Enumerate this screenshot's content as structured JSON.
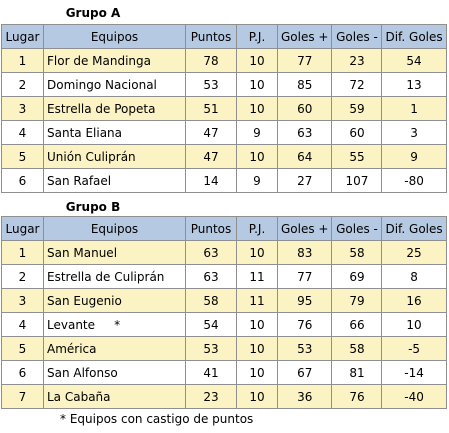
{
  "columns": [
    "Lugar",
    "Equipos",
    "Puntos",
    "P.J.",
    "Goles +",
    "Goles -",
    "Dif. Goles"
  ],
  "groups": [
    {
      "title": "Grupo A",
      "rows": [
        {
          "lugar": "1",
          "equipo": "Flor de Mandinga",
          "puntos": "78",
          "pj": "10",
          "gf": "77",
          "gc": "23",
          "dif": "54"
        },
        {
          "lugar": "2",
          "equipo": "Domingo Nacional",
          "puntos": "53",
          "pj": "10",
          "gf": "85",
          "gc": "72",
          "dif": "13"
        },
        {
          "lugar": "3",
          "equipo": "Estrella de Popeta",
          "puntos": "51",
          "pj": "10",
          "gf": "60",
          "gc": "59",
          "dif": "1"
        },
        {
          "lugar": "4",
          "equipo": "Santa Eliana",
          "puntos": "47",
          "pj": "9",
          "gf": "63",
          "gc": "60",
          "dif": "3"
        },
        {
          "lugar": "5",
          "equipo": "Unión Culiprán",
          "puntos": "47",
          "pj": "10",
          "gf": "64",
          "gc": "55",
          "dif": "9"
        },
        {
          "lugar": "6",
          "equipo": "San Rafael",
          "puntos": "14",
          "pj": "9",
          "gf": "27",
          "gc": "107",
          "dif": "-80"
        }
      ]
    },
    {
      "title": "Grupo B",
      "rows": [
        {
          "lugar": "1",
          "equipo": "San Manuel",
          "puntos": "63",
          "pj": "10",
          "gf": "83",
          "gc": "58",
          "dif": "25"
        },
        {
          "lugar": "2",
          "equipo": "Estrella de Culiprán",
          "puntos": "63",
          "pj": "11",
          "gf": "77",
          "gc": "69",
          "dif": "8"
        },
        {
          "lugar": "3",
          "equipo": "San Eugenio",
          "puntos": "58",
          "pj": "11",
          "gf": "95",
          "gc": "79",
          "dif": "16"
        },
        {
          "lugar": "4",
          "equipo": "Levante     *",
          "puntos": "54",
          "pj": "10",
          "gf": "76",
          "gc": "66",
          "dif": "10"
        },
        {
          "lugar": "5",
          "equipo": "América",
          "puntos": "53",
          "pj": "10",
          "gf": "53",
          "gc": "58",
          "dif": "-5"
        },
        {
          "lugar": "6",
          "equipo": "San Alfonso",
          "puntos": "41",
          "pj": "10",
          "gf": "67",
          "gc": "81",
          "dif": "-14"
        },
        {
          "lugar": "7",
          "equipo": "La Cabaña",
          "puntos": "23",
          "pj": "10",
          "gf": "36",
          "gc": "76",
          "dif": "-40"
        }
      ]
    }
  ],
  "footnote": "* Equipos con castigo de puntos"
}
